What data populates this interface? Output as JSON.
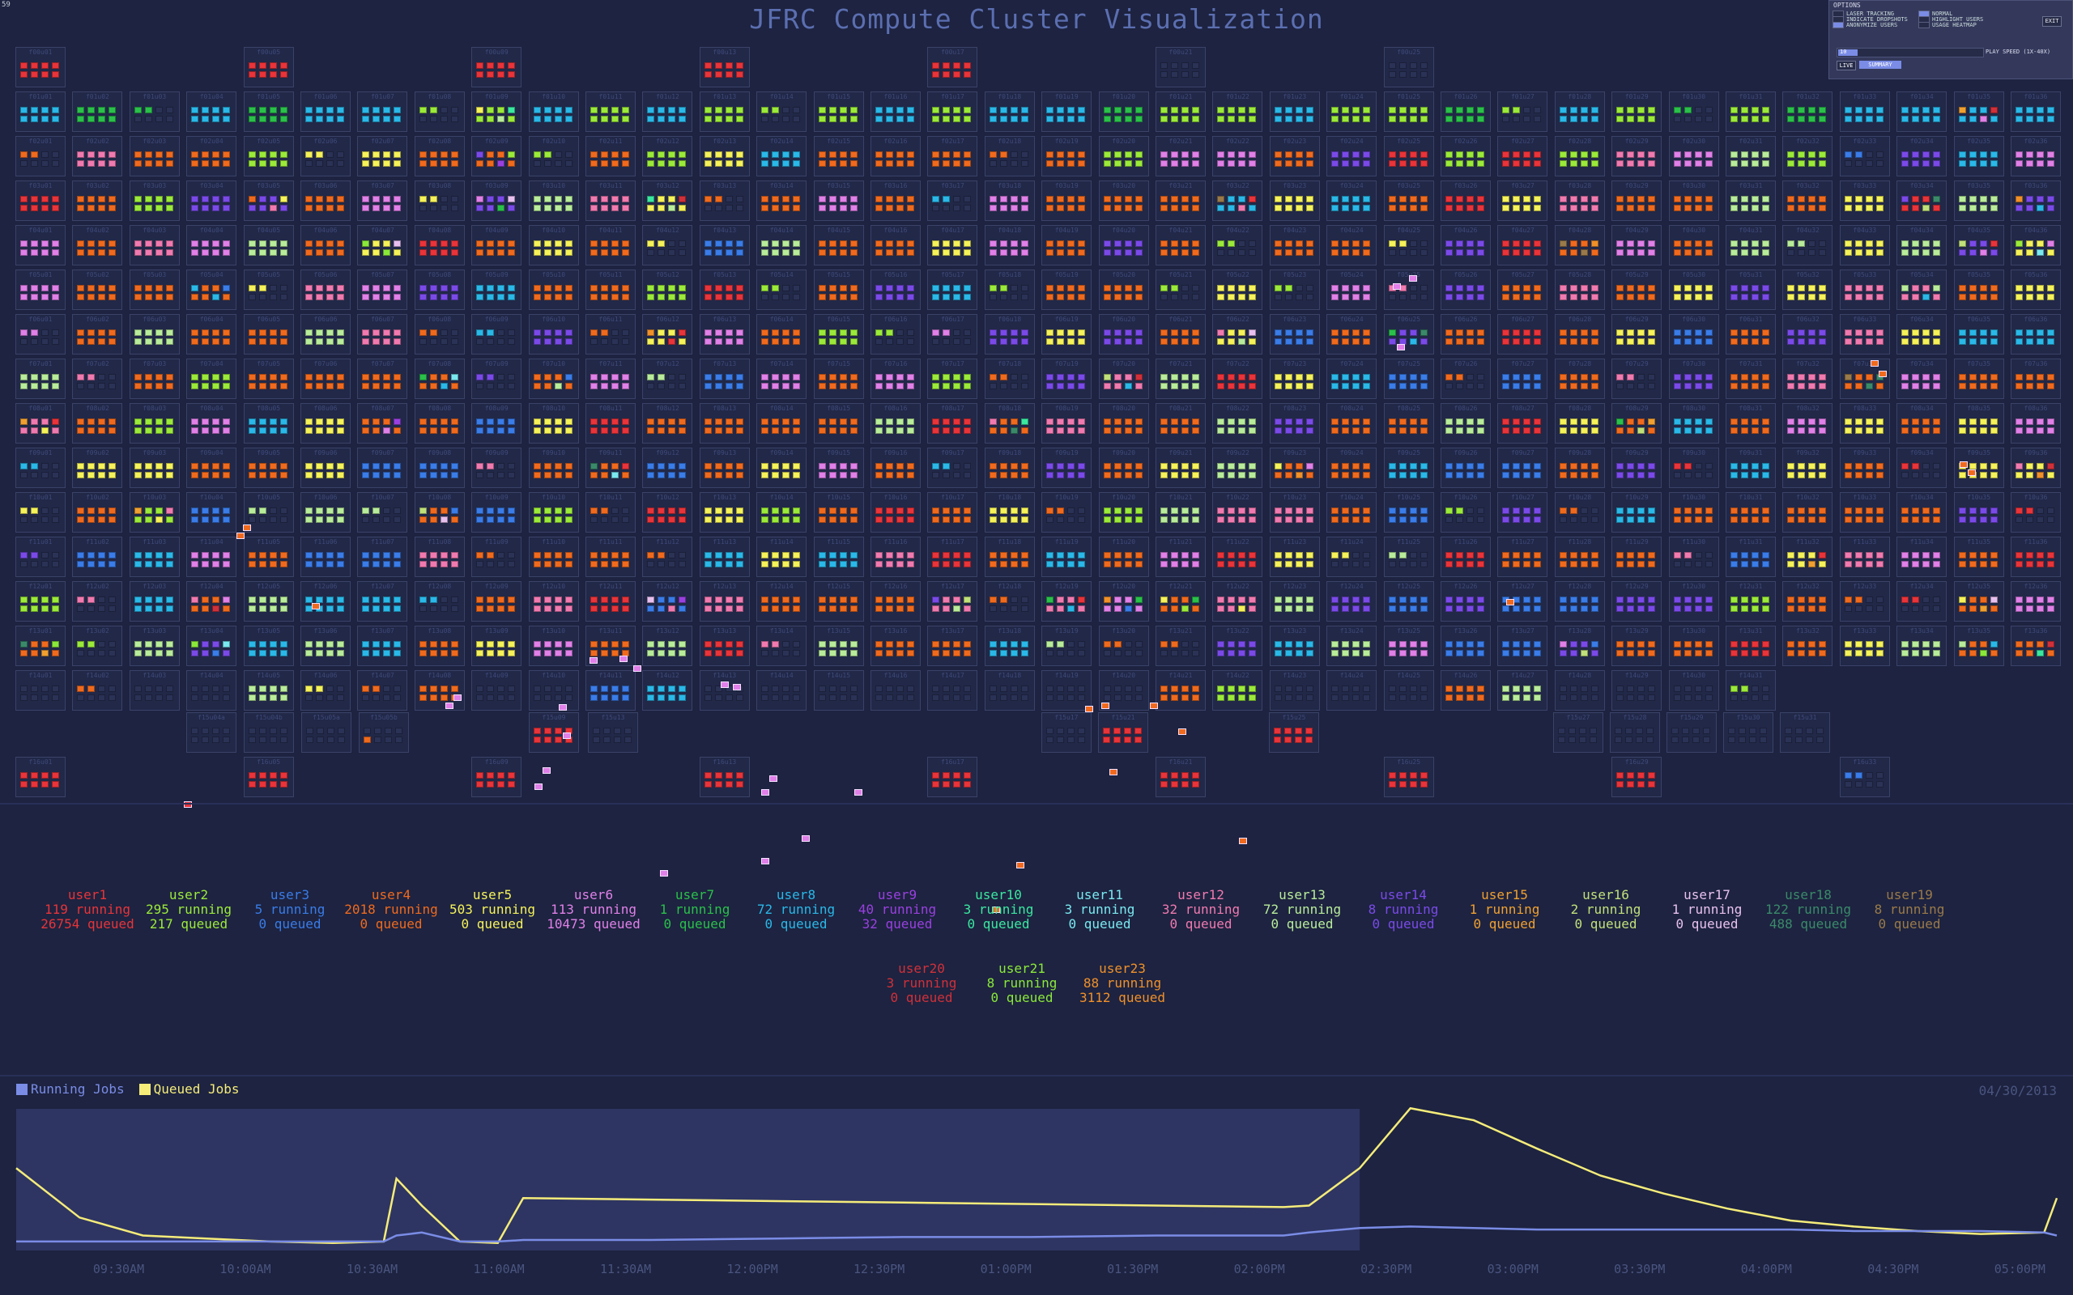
{
  "fps": "59",
  "title": "JFRC Compute Cluster Visualization",
  "options": {
    "header": "OPTIONS",
    "laser_tracking": "LASER TRACKING",
    "indicate_dropshots": "INDICATE DROPSHOTS",
    "anonymize_users": "ANONYMIZE USERS",
    "normal": "NORMAL",
    "highlight_users": "HIGHLIGHT USERS",
    "usage_heatmap": "USAGE HEATMAP",
    "exit": "EXIT",
    "speed_value": "10",
    "play_speed": "PLAY SPEED (1X-40X)",
    "live": "LIVE",
    "summary": "SUMMARY"
  },
  "colors": {
    "background": "#1d2340",
    "queued_line": "#f5ec7a",
    "running_line": "#7a8ce6",
    "timeline_highlight": "#2e3562"
  },
  "cluster": {
    "rows": [
      {
        "row": "f01",
        "nodes": [
          1,
          2,
          3,
          4,
          5,
          6,
          7,
          8,
          9,
          10,
          11,
          12,
          13,
          14,
          15,
          16,
          17,
          18,
          19,
          20,
          21,
          22,
          23,
          24,
          25,
          26,
          27,
          28,
          29,
          30,
          31,
          32,
          33,
          34,
          35,
          36
        ]
      },
      {
        "row": "f02",
        "nodes": [
          1,
          2,
          3,
          4,
          5,
          6,
          7,
          8,
          9,
          10,
          11,
          12,
          13,
          14,
          15,
          16,
          17,
          18,
          19,
          20,
          21,
          22,
          23,
          24,
          25,
          26,
          27,
          28,
          29,
          30,
          31,
          32,
          33,
          34,
          35,
          36
        ]
      },
      {
        "row": "f03",
        "nodes": [
          1,
          2,
          3,
          4,
          5,
          6,
          7,
          8,
          9,
          10,
          11,
          12,
          13,
          14,
          15,
          16,
          17,
          18,
          19,
          20,
          21,
          22,
          23,
          24,
          25,
          26,
          27,
          28,
          29,
          30,
          31,
          32,
          33,
          34,
          35,
          36
        ]
      },
      {
        "row": "f04",
        "nodes": [
          1,
          2,
          3,
          4,
          5,
          6,
          7,
          8,
          9,
          10,
          11,
          12,
          13,
          14,
          15,
          16,
          17,
          18,
          19,
          20,
          21,
          22,
          23,
          24,
          25,
          26,
          27,
          28,
          29,
          30,
          31,
          32,
          33,
          34,
          35,
          36
        ]
      },
      {
        "row": "f05",
        "nodes": [
          1,
          2,
          3,
          4,
          5,
          6,
          7,
          8,
          9,
          10,
          11,
          12,
          13,
          14,
          15,
          16,
          17,
          18,
          19,
          20,
          21,
          22,
          23,
          24,
          25,
          26,
          27,
          28,
          29,
          30,
          31,
          32,
          33,
          34,
          35,
          36
        ]
      },
      {
        "row": "f06",
        "nodes": [
          1,
          2,
          3,
          4,
          5,
          6,
          7,
          8,
          9,
          10,
          11,
          12,
          13,
          14,
          15,
          16,
          17,
          18,
          19,
          20,
          21,
          22,
          23,
          24,
          25,
          26,
          27,
          28,
          29,
          30,
          31,
          32,
          33,
          34,
          35,
          36
        ]
      },
      {
        "row": "f07",
        "nodes": [
          1,
          2,
          3,
          4,
          5,
          6,
          7,
          8,
          9,
          10,
          11,
          12,
          13,
          14,
          15,
          16,
          17,
          18,
          19,
          20,
          21,
          22,
          23,
          24,
          25,
          26,
          27,
          28,
          29,
          30,
          31,
          32,
          33,
          34,
          35,
          36
        ]
      },
      {
        "row": "f08",
        "nodes": [
          1,
          2,
          3,
          4,
          5,
          6,
          7,
          8,
          9,
          10,
          11,
          12,
          13,
          14,
          15,
          16,
          17,
          18,
          19,
          20,
          21,
          22,
          23,
          24,
          25,
          26,
          27,
          28,
          29,
          30,
          31,
          32,
          33,
          34,
          35,
          36
        ]
      },
      {
        "row": "f09",
        "nodes": [
          1,
          2,
          3,
          4,
          5,
          6,
          7,
          8,
          9,
          10,
          11,
          12,
          13,
          14,
          15,
          16,
          17,
          18,
          19,
          20,
          21,
          22,
          23,
          24,
          25,
          26,
          27,
          28,
          29,
          30,
          31,
          32,
          33,
          34,
          35,
          36
        ]
      },
      {
        "row": "f10",
        "nodes": [
          1,
          2,
          3,
          4,
          5,
          6,
          7,
          8,
          9,
          10,
          11,
          12,
          13,
          14,
          15,
          16,
          17,
          18,
          19,
          20,
          21,
          22,
          23,
          24,
          25,
          26,
          27,
          28,
          29,
          30,
          31,
          32,
          33,
          34,
          35,
          36
        ]
      },
      {
        "row": "f11",
        "nodes": [
          1,
          2,
          3,
          4,
          5,
          6,
          7,
          8,
          9,
          10,
          11,
          12,
          13,
          14,
          15,
          16,
          17,
          18,
          19,
          20,
          21,
          22,
          23,
          24,
          25,
          26,
          27,
          28,
          29,
          30,
          31,
          32,
          33,
          34,
          35,
          36
        ]
      },
      {
        "row": "f12",
        "nodes": [
          1,
          2,
          3,
          4,
          5,
          6,
          7,
          8,
          9,
          10,
          11,
          12,
          13,
          14,
          15,
          16,
          17,
          18,
          19,
          20,
          21,
          22,
          23,
          24,
          25,
          26,
          27,
          28,
          29,
          30,
          31,
          32,
          33,
          34,
          35,
          36
        ]
      },
      {
        "row": "f13",
        "nodes": [
          1,
          2,
          3,
          4,
          5,
          6,
          7,
          8,
          9,
          10,
          11,
          12,
          13,
          14,
          15,
          16,
          17,
          18,
          19,
          20,
          21,
          22,
          23,
          24,
          25,
          26,
          27,
          28,
          29,
          30,
          31,
          32,
          33,
          34,
          35,
          36
        ]
      },
      {
        "row": "f14",
        "nodes": [
          1,
          2,
          3,
          4,
          5,
          6,
          7,
          8,
          9,
          10,
          11,
          12,
          13,
          14,
          15,
          16,
          17,
          18,
          19,
          20,
          21,
          22,
          23,
          24,
          25,
          26,
          27,
          28,
          29,
          30,
          31
        ]
      }
    ],
    "top_nodes": [
      "f00u01",
      "f00u05",
      "f00u09",
      "f00u13",
      "f00u17",
      "f00u21",
      "f00u25"
    ],
    "mid_nodes": [
      "f15u04a",
      "f15u04b",
      "f15u05a",
      "f15u05b",
      "f15u09",
      "f15u13",
      "f15u17",
      "f15u21",
      "f15u25",
      "f15u27",
      "f15u28",
      "f15u29",
      "f15u30",
      "f15u31"
    ],
    "bottom_nodes": [
      "f16u01",
      "f16u05",
      "f16u09",
      "f16u13",
      "f16u17",
      "f16u21",
      "f16u25",
      "f16u29",
      "f16u33"
    ]
  },
  "users": [
    {
      "name": "user1",
      "running": "119 running",
      "queued": "26754 queued",
      "color": "#e8343a"
    },
    {
      "name": "user2",
      "running": "295 running",
      "queued": "217 queued",
      "color": "#9bea3a"
    },
    {
      "name": "user3",
      "running": "5 running",
      "queued": "0 queued",
      "color": "#3a7ce8"
    },
    {
      "name": "user4",
      "running": "2018 running",
      "queued": "0 queued",
      "color": "#f06a1e"
    },
    {
      "name": "user5",
      "running": "503 running",
      "queued": "0 queued",
      "color": "#f5f25a"
    },
    {
      "name": "user6",
      "running": "113 running",
      "queued": "10473 queued",
      "color": "#e080e8"
    },
    {
      "name": "user7",
      "running": "1 running",
      "queued": "0 queued",
      "color": "#2ac04a"
    },
    {
      "name": "user8",
      "running": "72 running",
      "queued": "0 queued",
      "color": "#2ab8e8"
    },
    {
      "name": "user9",
      "running": "40 running",
      "queued": "32 queued",
      "color": "#9a40e0"
    },
    {
      "name": "user10",
      "running": "3 running",
      "queued": "0 queued",
      "color": "#3ae8a0"
    },
    {
      "name": "user11",
      "running": "3 running",
      "queued": "0 queued",
      "color": "#7ae8f0"
    },
    {
      "name": "user12",
      "running": "32 running",
      "queued": "0 queued",
      "color": "#f07ab0"
    },
    {
      "name": "user13",
      "running": "72 running",
      "queued": "0 queued",
      "color": "#b8ec9a"
    },
    {
      "name": "user14",
      "running": "8 running",
      "queued": "0 queued",
      "color": "#7a4ae8"
    },
    {
      "name": "user15",
      "running": "1 running",
      "queued": "0 queued",
      "color": "#f0a030"
    },
    {
      "name": "user16",
      "running": "2 running",
      "queued": "0 queued",
      "color": "#c0e07a"
    },
    {
      "name": "user17",
      "running": "1 running",
      "queued": "0 queued",
      "color": "#e8c0f0"
    },
    {
      "name": "user18",
      "running": "122 running",
      "queued": "488 queued",
      "color": "#3a8a6a"
    },
    {
      "name": "user19",
      "running": "8 running",
      "queued": "0 queued",
      "color": "#9a7a4a"
    },
    {
      "name": "user20",
      "running": "3 running",
      "queued": "0 queued",
      "color": "#d0303a"
    },
    {
      "name": "user21",
      "running": "8 running",
      "queued": "0 queued",
      "color": "#8ae83a"
    },
    {
      "name": "user23",
      "running": "88 running",
      "queued": "3112 queued",
      "color": "#f0902a"
    }
  ],
  "legend": {
    "running": "Running Jobs",
    "queued": "Queued Jobs"
  },
  "date": "04/30/2013",
  "chart_data": {
    "type": "line",
    "x_ticks": [
      "09:30AM",
      "10:00AM",
      "10:30AM",
      "11:00AM",
      "11:30AM",
      "12:00PM",
      "12:30PM",
      "01:00PM",
      "01:30PM",
      "02:00PM",
      "02:30PM",
      "03:00PM",
      "03:30PM",
      "04:00PM",
      "04:30PM",
      "05:00PM"
    ],
    "x_hours": [
      9.0,
      9.25,
      9.5,
      9.75,
      10.0,
      10.25,
      10.45,
      10.5,
      10.6,
      10.75,
      10.9,
      11.0,
      11.5,
      12.0,
      12.5,
      13.0,
      13.5,
      14.0,
      14.1,
      14.3,
      14.5,
      14.75,
      15.0,
      15.25,
      15.5,
      15.75,
      16.0,
      16.25,
      16.5,
      16.75,
      17.0,
      17.05
    ],
    "series": [
      {
        "name": "Queued Jobs",
        "color": "#f5ec7a",
        "values": [
          0.55,
          0.22,
          0.1,
          0.08,
          0.06,
          0.05,
          0.06,
          0.48,
          0.3,
          0.06,
          0.05,
          0.35,
          0.34,
          0.33,
          0.32,
          0.31,
          0.3,
          0.29,
          0.3,
          0.55,
          0.95,
          0.87,
          0.68,
          0.5,
          0.38,
          0.28,
          0.2,
          0.16,
          0.13,
          0.11,
          0.12,
          0.35
        ]
      },
      {
        "name": "Running Jobs",
        "color": "#7a8ce6",
        "values": [
          0.06,
          0.06,
          0.06,
          0.06,
          0.06,
          0.06,
          0.06,
          0.1,
          0.12,
          0.06,
          0.06,
          0.07,
          0.07,
          0.08,
          0.09,
          0.09,
          0.1,
          0.1,
          0.12,
          0.15,
          0.16,
          0.15,
          0.14,
          0.14,
          0.14,
          0.14,
          0.14,
          0.13,
          0.13,
          0.13,
          0.12,
          0.1
        ]
      }
    ],
    "highlight_range_hours": [
      9.0,
      14.3
    ]
  }
}
